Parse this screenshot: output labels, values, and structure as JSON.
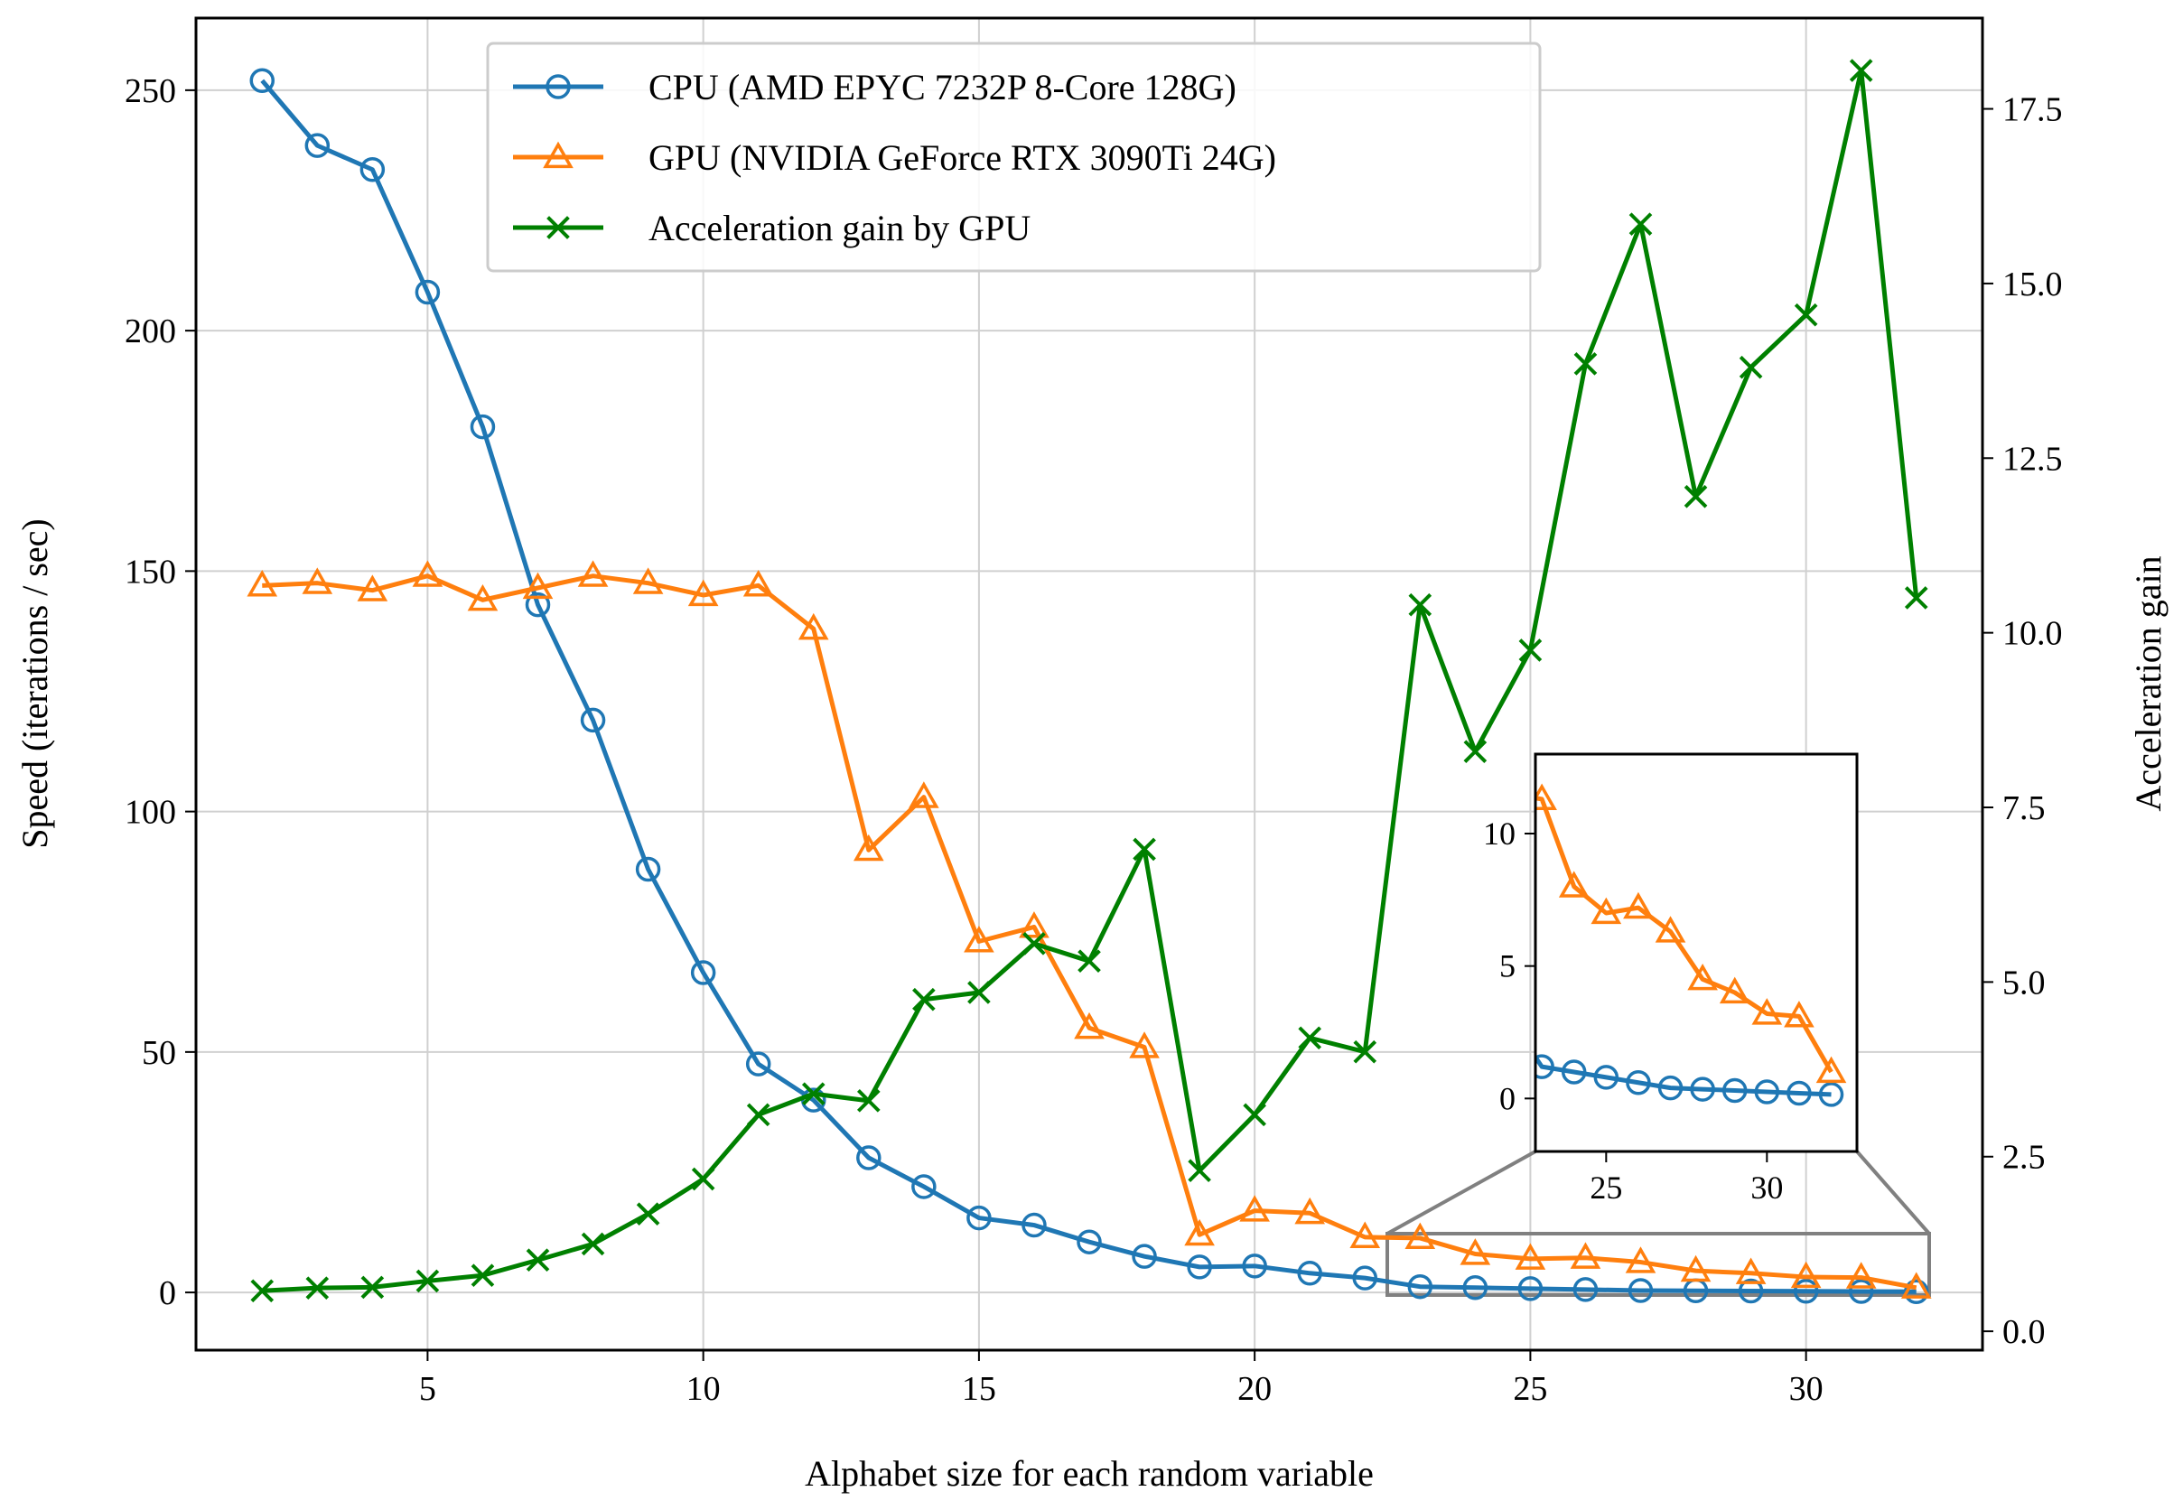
{
  "chart_data": {
    "type": "line",
    "xlabel": "Alphabet size for each random variable",
    "ylabel": "Speed (iterations / sec)",
    "ylabel_right": "Acceleration gain",
    "xlim": [
      0.8,
      33.2
    ],
    "ylim": [
      -12,
      265
    ],
    "ylim_right": [
      -0.27,
      18.8
    ],
    "x_ticks": [
      5,
      10,
      15,
      20,
      25,
      30
    ],
    "y_ticks": [
      0,
      50,
      100,
      150,
      200,
      250
    ],
    "y_ticks_right": [
      0.0,
      2.5,
      5.0,
      7.5,
      10.0,
      12.5,
      15.0,
      17.5
    ],
    "grid": true,
    "legend_position": "top-center",
    "x": [
      2,
      3,
      4,
      5,
      6,
      7,
      8,
      9,
      10,
      11,
      12,
      13,
      14,
      15,
      16,
      17,
      18,
      19,
      20,
      21,
      22,
      23,
      24,
      25,
      26,
      27,
      28,
      29,
      30,
      31,
      32
    ],
    "series": [
      {
        "name": "CPU (AMD EPYC 7232P 8-Core 128G)",
        "axis": "left",
        "color": "#1f77b4",
        "marker": "circle",
        "values": [
          252,
          238.5,
          233.5,
          208,
          180,
          143,
          119,
          88,
          66.5,
          47.5,
          40,
          28,
          22,
          15.5,
          14,
          10.5,
          7.5,
          5.3,
          5.5,
          4,
          3,
          1.2,
          1,
          0.8,
          0.6,
          0.4,
          0.35,
          0.3,
          0.25,
          0.2,
          0.15
        ]
      },
      {
        "name": "GPU (NVIDIA GeForce RTX 3090Ti 24G)",
        "axis": "left",
        "color": "#ff7f0e",
        "marker": "triangle",
        "values": [
          147,
          147.5,
          146,
          149,
          144,
          146.5,
          149,
          147.5,
          145,
          147,
          138,
          92,
          103,
          73,
          76,
          55,
          51,
          12,
          17,
          16.5,
          11.5,
          11.3,
          8,
          7,
          7.2,
          6.3,
          4.5,
          4,
          3.2,
          3.1,
          1
        ]
      },
      {
        "name": "Acceleration gain by GPU",
        "axis": "right",
        "color": "#008000",
        "marker": "x",
        "values": [
          0.58,
          0.62,
          0.63,
          0.72,
          0.8,
          1.02,
          1.25,
          1.68,
          2.18,
          3.1,
          3.4,
          3.3,
          4.75,
          4.85,
          5.55,
          5.3,
          6.9,
          2.3,
          3.1,
          4.2,
          4.0,
          10.4,
          8.3,
          9.75,
          13.85,
          15.85,
          11.95,
          13.8,
          14.55,
          18.05,
          10.5
        ]
      }
    ],
    "inset": {
      "xlim": [
        22.8,
        32.8
      ],
      "ylim": [
        -2,
        13
      ],
      "x_ticks": [
        25,
        30
      ],
      "y_ticks": [
        0,
        5,
        10
      ]
    }
  }
}
